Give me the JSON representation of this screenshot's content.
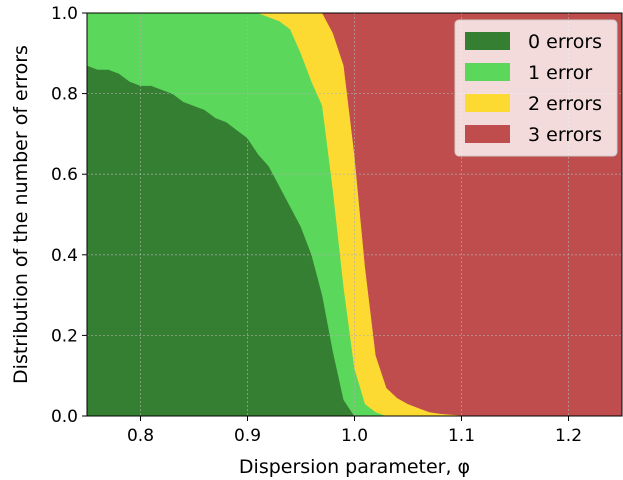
{
  "chart_data": {
    "type": "area",
    "stacked": true,
    "xlabel": "Dispersion parameter, φ",
    "ylabel": "Distribution of the number of errors",
    "xlim": [
      0.75,
      1.25
    ],
    "ylim": [
      0.0,
      1.0
    ],
    "xticks": [
      0.8,
      0.9,
      1.0,
      1.1,
      1.2
    ],
    "yticks": [
      0.0,
      0.2,
      0.4,
      0.6,
      0.8,
      1.0
    ],
    "xtick_labels": [
      "0.8",
      "0.9",
      "1.0",
      "1.1",
      "1.2"
    ],
    "ytick_labels": [
      "0.0",
      "0.2",
      "0.4",
      "0.6",
      "0.8",
      "1.0"
    ],
    "grid": true,
    "legend_position": "top-right",
    "x": [
      0.75,
      0.76,
      0.77,
      0.78,
      0.79,
      0.8,
      0.81,
      0.82,
      0.83,
      0.84,
      0.85,
      0.86,
      0.87,
      0.88,
      0.89,
      0.9,
      0.91,
      0.92,
      0.93,
      0.94,
      0.95,
      0.96,
      0.97,
      0.98,
      0.99,
      1.0,
      1.01,
      1.02,
      1.03,
      1.04,
      1.05,
      1.06,
      1.07,
      1.08,
      1.09,
      1.1,
      1.12,
      1.15,
      1.2,
      1.25
    ],
    "series": [
      {
        "name": "0 errors",
        "color": "#347f31",
        "values": [
          0.87,
          0.86,
          0.86,
          0.85,
          0.83,
          0.82,
          0.82,
          0.81,
          0.8,
          0.78,
          0.77,
          0.76,
          0.74,
          0.73,
          0.71,
          0.69,
          0.65,
          0.62,
          0.57,
          0.52,
          0.47,
          0.4,
          0.3,
          0.16,
          0.04,
          0.0,
          0.0,
          0.0,
          0.0,
          0.0,
          0.0,
          0.0,
          0.0,
          0.0,
          0.0,
          0.0,
          0.0,
          0.0,
          0.0,
          0.0
        ]
      },
      {
        "name": "1 error",
        "color": "#5bd75b",
        "values": [
          0.13,
          0.14,
          0.14,
          0.15,
          0.17,
          0.18,
          0.18,
          0.19,
          0.2,
          0.22,
          0.23,
          0.24,
          0.26,
          0.27,
          0.29,
          0.31,
          0.35,
          0.37,
          0.41,
          0.44,
          0.43,
          0.43,
          0.47,
          0.4,
          0.28,
          0.12,
          0.03,
          0.01,
          0.0,
          0.0,
          0.0,
          0.0,
          0.0,
          0.0,
          0.0,
          0.0,
          0.0,
          0.0,
          0.0,
          0.0
        ]
      },
      {
        "name": "2 errors",
        "color": "#fdda32",
        "values": [
          0.0,
          0.0,
          0.0,
          0.0,
          0.0,
          0.0,
          0.0,
          0.0,
          0.0,
          0.0,
          0.0,
          0.0,
          0.0,
          0.0,
          0.0,
          0.0,
          0.0,
          0.01,
          0.02,
          0.04,
          0.1,
          0.17,
          0.23,
          0.39,
          0.55,
          0.53,
          0.34,
          0.14,
          0.07,
          0.045,
          0.03,
          0.02,
          0.01,
          0.006,
          0.004,
          0.002,
          0.001,
          0.0,
          0.0,
          0.0
        ]
      },
      {
        "name": "3 errors",
        "color": "#c04d4d",
        "values": [
          0.0,
          0.0,
          0.0,
          0.0,
          0.0,
          0.0,
          0.0,
          0.0,
          0.0,
          0.0,
          0.0,
          0.0,
          0.0,
          0.0,
          0.0,
          0.0,
          0.0,
          0.0,
          0.0,
          0.0,
          0.0,
          0.0,
          0.0,
          0.05,
          0.13,
          0.35,
          0.63,
          0.85,
          0.93,
          0.955,
          0.97,
          0.98,
          0.99,
          0.994,
          0.996,
          0.998,
          0.999,
          1.0,
          1.0,
          1.0
        ]
      }
    ]
  }
}
